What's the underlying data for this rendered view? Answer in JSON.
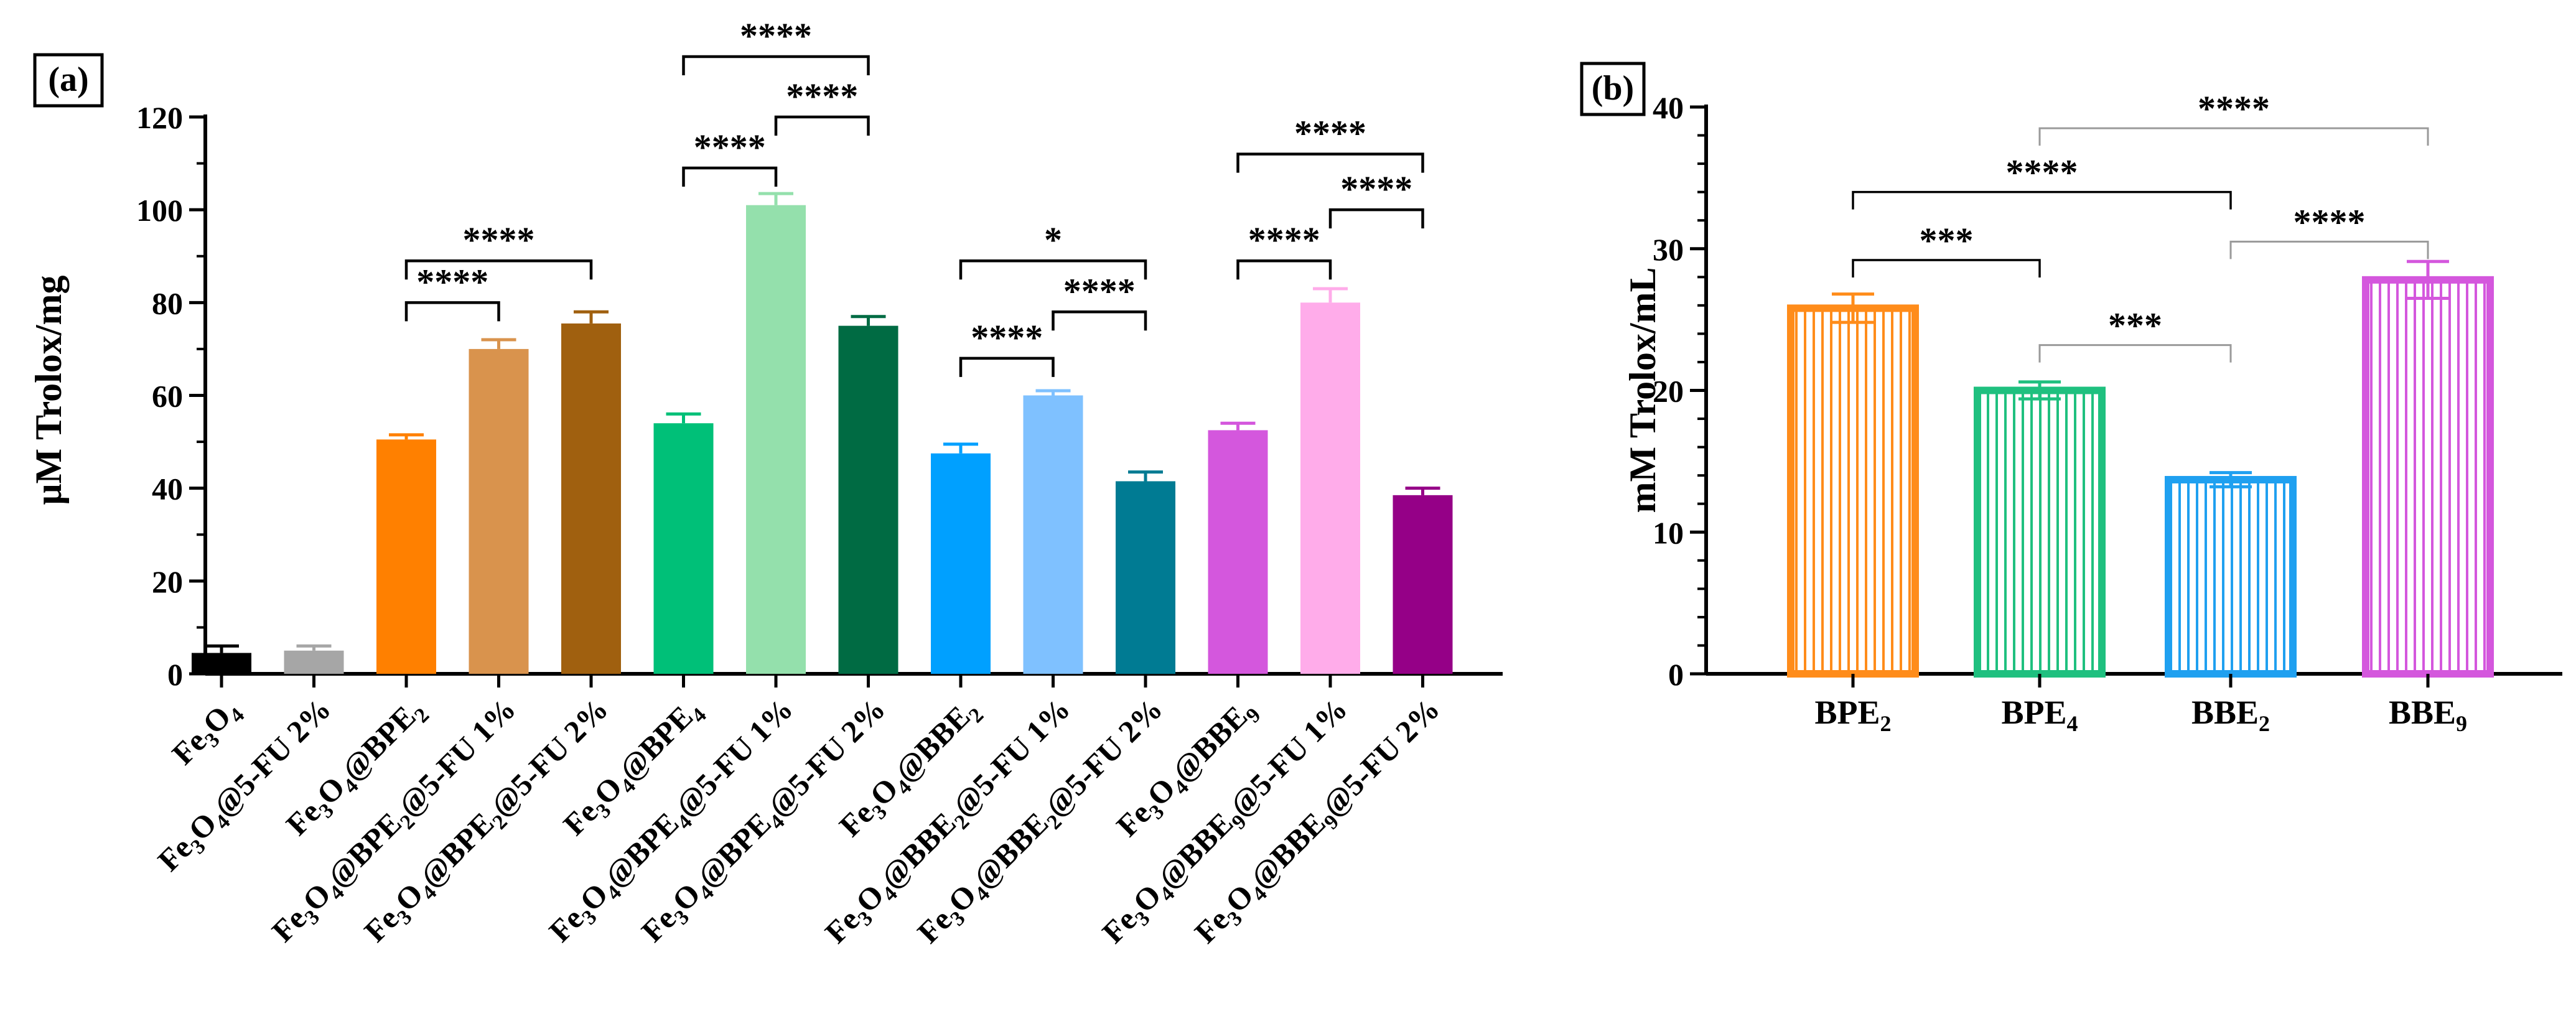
{
  "colors": {
    "Fe3O4": "#000000",
    "Fe3O4_5FU": "#a6a6a6",
    "BPE2": "#ff8000",
    "BPE2_1": "#d9934d",
    "BPE2_2": "#a0600f",
    "BPE4": "#00c078",
    "BPE4_1": "#94e0ac",
    "BPE4_2": "#006b43",
    "BBE2": "#00a0ff",
    "BBE2_1": "#7fc1ff",
    "BBE2_2": "#007b93",
    "BBE9": "#d457dd",
    "BBE9_1": "#ffacea",
    "BBE9_2": "#950087",
    "b_BPE2": "#ff8c1a",
    "b_BPE4": "#1fc07f",
    "b_BBE2": "#1fa0f0",
    "b_BBE9": "#d457dd",
    "bracket_light": "#9a9a9a"
  },
  "chart_data": [
    {
      "panel_label": "(a)",
      "type": "bar",
      "ylabel": "μM Trolox/mg",
      "ylim": [
        0,
        120
      ],
      "yticks": [
        "0",
        "20",
        "40",
        "60",
        "80",
        "100",
        "120"
      ],
      "categories": [
        {
          "id": "Fe3O4",
          "base": "Fe",
          "sub1": "3",
          "mid": "O",
          "sub2": "4",
          "tail": ""
        },
        {
          "id": "Fe3O4_5FU",
          "base": "Fe",
          "sub1": "3",
          "mid": "O",
          "sub2": "4",
          "tail": "@5-FU 2%"
        },
        {
          "id": "BPE2",
          "base": "Fe",
          "sub1": "3",
          "mid": "O",
          "sub2": "4",
          "tail": "@BPE",
          "sub3": "2",
          "tail2": ""
        },
        {
          "id": "BPE2_1",
          "base": "Fe",
          "sub1": "3",
          "mid": "O",
          "sub2": "4",
          "tail": "@BPE",
          "sub3": "2",
          "tail2": "@5-FU 1%"
        },
        {
          "id": "BPE2_2",
          "base": "Fe",
          "sub1": "3",
          "mid": "O",
          "sub2": "4",
          "tail": "@BPE",
          "sub3": "2",
          "tail2": "@5-FU 2%"
        },
        {
          "id": "BPE4",
          "base": "Fe",
          "sub1": "3",
          "mid": "O",
          "sub2": "4",
          "tail": "@BPE",
          "sub3": "4",
          "tail2": ""
        },
        {
          "id": "BPE4_1",
          "base": "Fe",
          "sub1": "3",
          "mid": "O",
          "sub2": "4",
          "tail": "@BPE",
          "sub3": "4",
          "tail2": "@5-FU 1%"
        },
        {
          "id": "BPE4_2",
          "base": "Fe",
          "sub1": "3",
          "mid": "O",
          "sub2": "4",
          "tail": "@BPE",
          "sub3": "4",
          "tail2": "@5-FU 2%"
        },
        {
          "id": "BBE2",
          "base": "Fe",
          "sub1": "3",
          "mid": "O",
          "sub2": "4",
          "tail": "@BBE",
          "sub3": "2",
          "tail2": ""
        },
        {
          "id": "BBE2_1",
          "base": "Fe",
          "sub1": "3",
          "mid": "O",
          "sub2": "4",
          "tail": "@BBE",
          "sub3": "2",
          "tail2": "@5-FU 1%"
        },
        {
          "id": "BBE2_2",
          "base": "Fe",
          "sub1": "3",
          "mid": "O",
          "sub2": "4",
          "tail": "@BBE",
          "sub3": "2",
          "tail2": "@5-FU 2%"
        },
        {
          "id": "BBE9",
          "base": "Fe",
          "sub1": "3",
          "mid": "O",
          "sub2": "4",
          "tail": "@BBE",
          "sub3": "9",
          "tail2": ""
        },
        {
          "id": "BBE9_1",
          "base": "Fe",
          "sub1": "3",
          "mid": "O",
          "sub2": "4",
          "tail": "@BBE",
          "sub3": "9",
          "tail2": "@5-FU 1%"
        },
        {
          "id": "BBE9_2",
          "base": "Fe",
          "sub1": "3",
          "mid": "O",
          "sub2": "4",
          "tail": "@BBE",
          "sub3": "9",
          "tail2": "@5-FU 2%"
        }
      ],
      "values": [
        4.5,
        5.0,
        50.5,
        70.0,
        75.5,
        54.0,
        101.0,
        75.0,
        47.5,
        60.0,
        41.5,
        52.5,
        80.0,
        38.5
      ],
      "errors": [
        1.5,
        1.0,
        1.0,
        2.0,
        2.5,
        2.0,
        2.5,
        2.0,
        2.0,
        1.0,
        2.0,
        1.5,
        3.0,
        1.5
      ],
      "significance": [
        {
          "from": 2,
          "to": 3,
          "label": "****",
          "level": 80
        },
        {
          "from": 2,
          "to": 4,
          "label": "****",
          "level": 89
        },
        {
          "from": 5,
          "to": 6,
          "label": "****",
          "level": 109
        },
        {
          "from": 6,
          "to": 7,
          "label": "****",
          "level": 120
        },
        {
          "from": 5,
          "to": 7,
          "label": "****",
          "level": 133
        },
        {
          "from": 8,
          "to": 9,
          "label": "****",
          "level": 68
        },
        {
          "from": 9,
          "to": 10,
          "label": "****",
          "level": 78
        },
        {
          "from": 8,
          "to": 10,
          "label": "*",
          "level": 89
        },
        {
          "from": 11,
          "to": 12,
          "label": "****",
          "level": 89
        },
        {
          "from": 12,
          "to": 13,
          "label": "****",
          "level": 100
        },
        {
          "from": 11,
          "to": 13,
          "label": "****",
          "level": 112
        }
      ]
    },
    {
      "panel_label": "(b)",
      "type": "bar",
      "ylabel": "mM Trolox/mL",
      "ylim": [
        0,
        40
      ],
      "yticks": [
        "0",
        "10",
        "20",
        "30",
        "40"
      ],
      "categories": [
        {
          "id": "b_BPE2",
          "base": "BPE",
          "sub": "2"
        },
        {
          "id": "b_BPE4",
          "base": "BPE",
          "sub": "4"
        },
        {
          "id": "b_BBE2",
          "base": "BBE",
          "sub": "2"
        },
        {
          "id": "b_BBE9",
          "base": "BBE",
          "sub": "9"
        }
      ],
      "values": [
        25.8,
        20.0,
        13.7,
        27.8
      ],
      "errors": [
        1.0,
        0.6,
        0.5,
        1.3
      ],
      "significance": [
        {
          "from": 0,
          "to": 1,
          "label": "***",
          "level": 29.2,
          "style": "dark"
        },
        {
          "from": 1,
          "to": 2,
          "label": "***",
          "level": 23.2,
          "style": "light"
        },
        {
          "from": 0,
          "to": 2,
          "label": "****",
          "level": 34.0,
          "style": "dark"
        },
        {
          "from": 2,
          "to": 3,
          "label": "****",
          "level": 30.5,
          "style": "light"
        },
        {
          "from": 1,
          "to": 3,
          "label": "****",
          "level": 38.5,
          "style": "light"
        }
      ]
    }
  ]
}
